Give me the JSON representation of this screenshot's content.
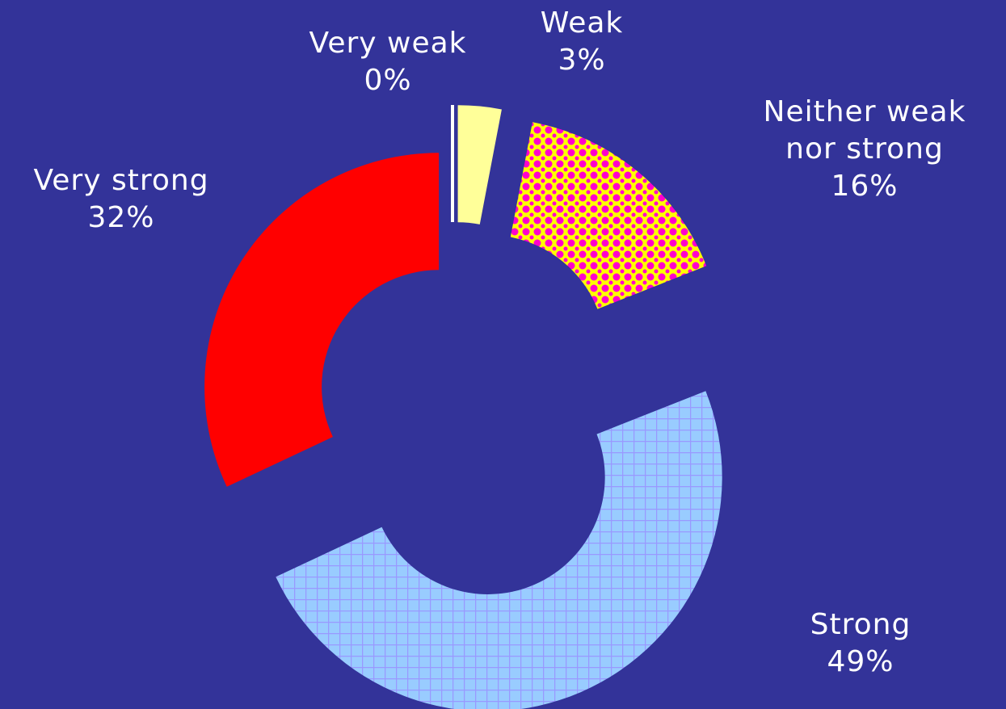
{
  "chart_data": {
    "type": "donut",
    "categories": [
      "Very weak",
      "Weak",
      "Neither weak nor strong",
      "Strong",
      "Very strong"
    ],
    "values": [
      0,
      3,
      16,
      49,
      32
    ],
    "value_labels": [
      "0%",
      "3%",
      "16%",
      "49%",
      "32%"
    ],
    "colors": [
      "#ffffff",
      "#ffff99",
      "#ffff00",
      "#99ccff",
      "#ff0000"
    ]
  }
}
